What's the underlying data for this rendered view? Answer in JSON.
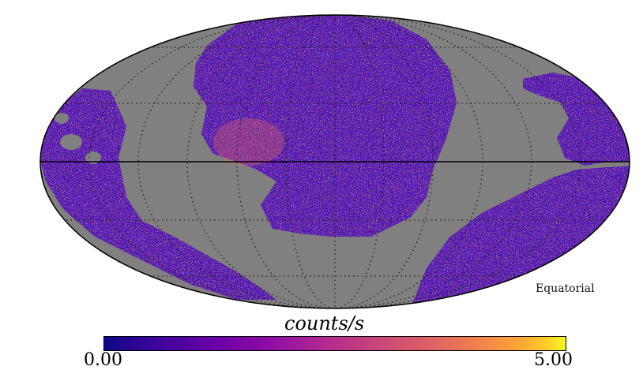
{
  "map": {
    "projection": "mollweide",
    "coordinate_system_label": "Equatorial",
    "graticule": true,
    "mask_color": "#808080",
    "colormap": "plasma"
  },
  "colorbar": {
    "label": "counts/s",
    "min_label": "0.00",
    "max_label": "5.00",
    "min": 0.0,
    "max": 5.0
  },
  "palette": [
    "#0d0887",
    "#5c01a6",
    "#9c179e",
    "#cc4778",
    "#ed7953",
    "#fdb42f",
    "#f0f921"
  ]
}
